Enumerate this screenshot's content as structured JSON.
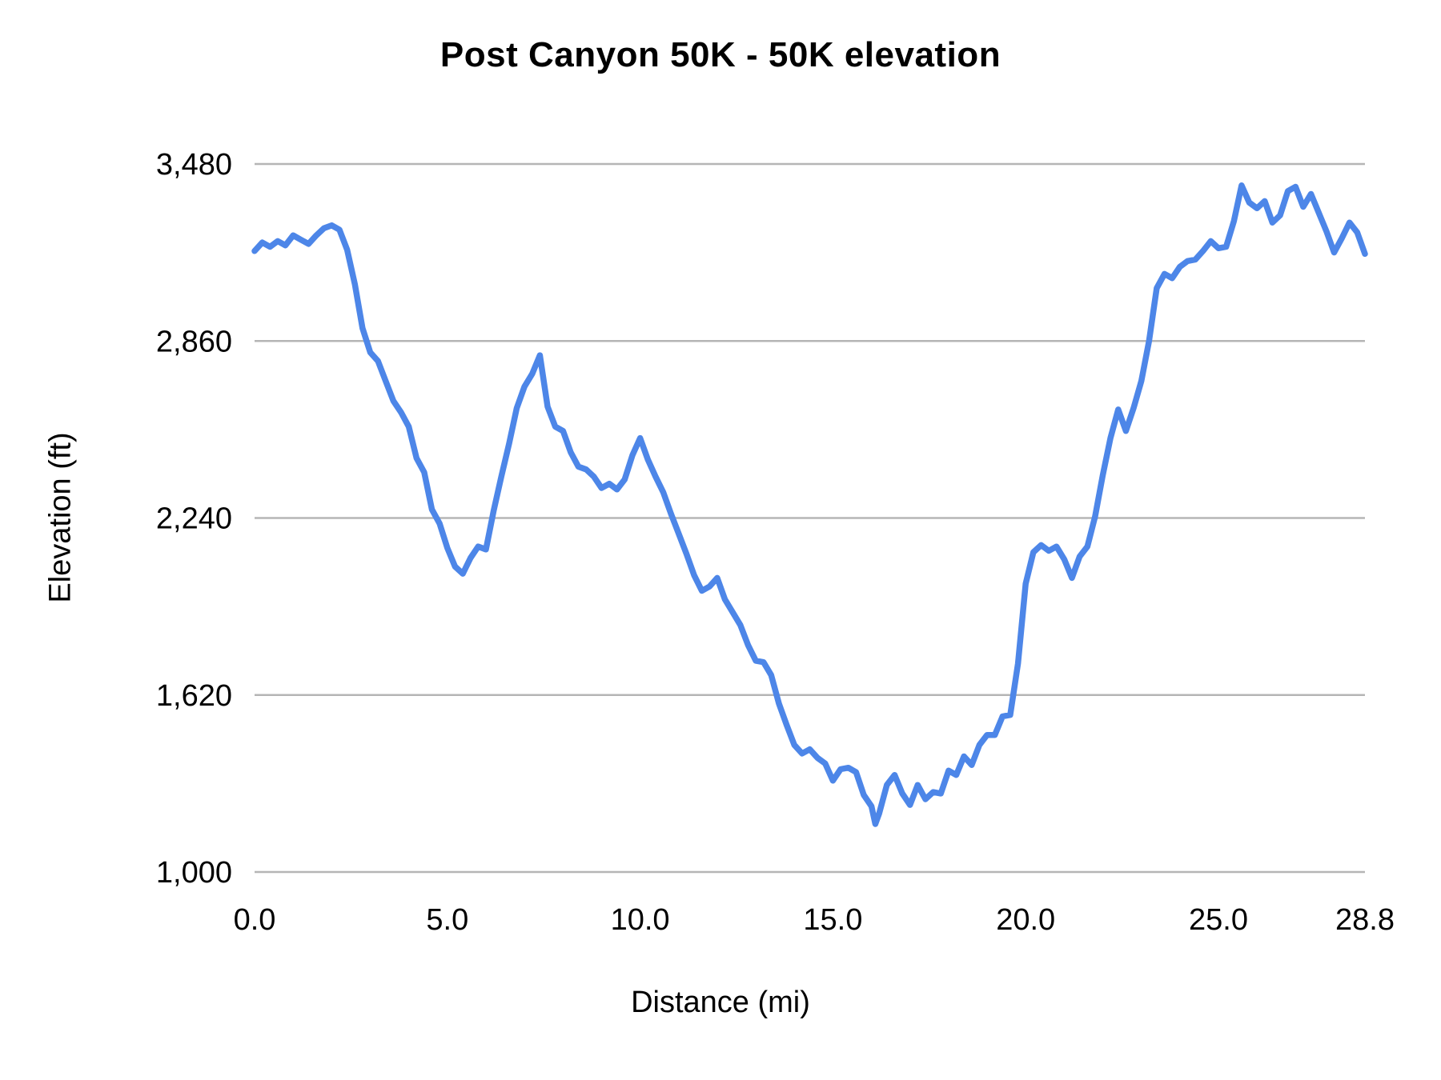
{
  "chart": {
    "title": "Post Canyon 50K - 50K elevation",
    "ylabel": "Elevation (ft)",
    "xlabel": "Distance (mi)"
  },
  "colors": {
    "line": "#4d86e8",
    "gridline": "#b5b5b5",
    "text": "#000000",
    "background": "#ffffff"
  },
  "chart_data": {
    "type": "line",
    "title": "Post Canyon 50K - 50K elevation",
    "xlabel": "Distance (mi)",
    "ylabel": "Elevation (ft)",
    "xlim": [
      0,
      28.8
    ],
    "ylim": [
      1000,
      3480
    ],
    "grid": "horizontal-only",
    "legend": "none",
    "y_ticks": [
      1000,
      1620,
      2240,
      2860,
      3480
    ],
    "y_tick_labels": [
      "1,000",
      "1,620",
      "2,240",
      "2,860",
      "3,480"
    ],
    "x_ticks": [
      0,
      5,
      10,
      15,
      20,
      25,
      28.8
    ],
    "x_tick_labels": [
      "0.0",
      "5.0",
      "10.0",
      "15.0",
      "20.0",
      "25.0",
      "28.8"
    ],
    "series": [
      {
        "name": "50K elevation",
        "color": "#4d86e8",
        "x": [
          0.0,
          0.2,
          0.4,
          0.6,
          0.8,
          1.0,
          1.2,
          1.4,
          1.6,
          1.8,
          2.0,
          2.2,
          2.4,
          2.6,
          2.8,
          3.0,
          3.2,
          3.4,
          3.6,
          3.8,
          4.0,
          4.2,
          4.4,
          4.6,
          4.8,
          5.0,
          5.2,
          5.4,
          5.6,
          5.8,
          6.0,
          6.2,
          6.4,
          6.6,
          6.8,
          7.0,
          7.2,
          7.4,
          7.6,
          7.8,
          8.0,
          8.2,
          8.4,
          8.6,
          8.8,
          9.0,
          9.2,
          9.4,
          9.6,
          9.8,
          10.0,
          10.2,
          10.4,
          10.6,
          10.8,
          11.0,
          11.2,
          11.4,
          11.6,
          11.8,
          12.0,
          12.2,
          12.4,
          12.6,
          12.8,
          13.0,
          13.2,
          13.4,
          13.6,
          13.8,
          14.0,
          14.2,
          14.4,
          14.6,
          14.8,
          15.0,
          15.2,
          15.4,
          15.6,
          15.8,
          16.0,
          16.1,
          16.2,
          16.4,
          16.6,
          16.8,
          17.0,
          17.2,
          17.4,
          17.6,
          17.8,
          18.0,
          18.2,
          18.4,
          18.6,
          18.8,
          19.0,
          19.2,
          19.4,
          19.6,
          19.8,
          20.0,
          20.2,
          20.4,
          20.6,
          20.8,
          21.0,
          21.2,
          21.4,
          21.6,
          21.8,
          22.0,
          22.2,
          22.4,
          22.6,
          22.8,
          23.0,
          23.2,
          23.4,
          23.6,
          23.8,
          24.0,
          24.2,
          24.4,
          24.6,
          24.8,
          25.0,
          25.2,
          25.4,
          25.6,
          25.8,
          26.0,
          26.2,
          26.4,
          26.6,
          26.8,
          27.0,
          27.2,
          27.4,
          27.6,
          27.8,
          28.0,
          28.2,
          28.4,
          28.6,
          28.8
        ],
        "y": [
          3175,
          3205,
          3190,
          3210,
          3195,
          3230,
          3215,
          3200,
          3230,
          3255,
          3265,
          3250,
          3180,
          3060,
          2905,
          2820,
          2790,
          2720,
          2650,
          2610,
          2560,
          2450,
          2400,
          2270,
          2220,
          2135,
          2070,
          2045,
          2100,
          2140,
          2130,
          2265,
          2385,
          2500,
          2625,
          2700,
          2745,
          2810,
          2630,
          2560,
          2545,
          2470,
          2420,
          2410,
          2385,
          2345,
          2360,
          2340,
          2375,
          2460,
          2520,
          2445,
          2385,
          2330,
          2255,
          2185,
          2115,
          2040,
          1985,
          2000,
          2030,
          1955,
          1910,
          1865,
          1795,
          1740,
          1735,
          1690,
          1590,
          1515,
          1445,
          1415,
          1430,
          1400,
          1380,
          1320,
          1360,
          1365,
          1350,
          1270,
          1230,
          1168,
          1205,
          1305,
          1340,
          1275,
          1235,
          1305,
          1255,
          1280,
          1275,
          1355,
          1340,
          1405,
          1375,
          1445,
          1480,
          1480,
          1545,
          1550,
          1730,
          2010,
          2120,
          2145,
          2125,
          2140,
          2095,
          2030,
          2105,
          2140,
          2245,
          2390,
          2520,
          2620,
          2545,
          2625,
          2720,
          2860,
          3045,
          3095,
          3080,
          3120,
          3140,
          3145,
          3175,
          3210,
          3185,
          3190,
          3280,
          3405,
          3345,
          3325,
          3350,
          3275,
          3300,
          3385,
          3400,
          3330,
          3375,
          3310,
          3245,
          3170,
          3220,
          3275,
          3240,
          3165
        ]
      }
    ]
  }
}
